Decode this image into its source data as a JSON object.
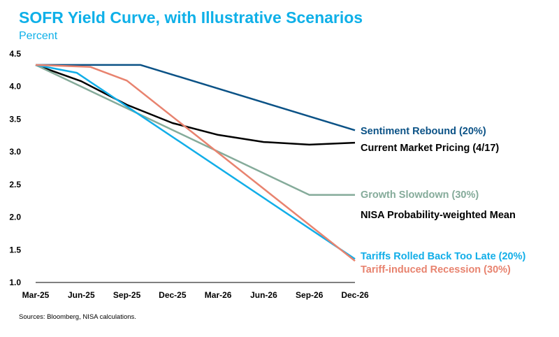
{
  "header": {
    "title": "SOFR Yield Curve, with Illustrative Scenarios",
    "subtitle": "Percent"
  },
  "footer": {
    "source": "Sources: Bloomberg, NISA calculations."
  },
  "chart_data": {
    "type": "line",
    "title": "SOFR Yield Curve, with Illustrative Scenarios",
    "ylabel": "Percent",
    "xlabel": "",
    "categories": [
      "Mar-25",
      "Jun-25",
      "Sep-25",
      "Dec-25",
      "Mar-26",
      "Jun-26",
      "Sep-26",
      "Dec-26"
    ],
    "ylim": [
      1.0,
      4.5
    ],
    "yticks": [
      "1.0",
      "1.5",
      "2.0",
      "2.5",
      "3.0",
      "3.5",
      "4.0",
      "4.5"
    ],
    "grid": false,
    "series": [
      {
        "name": "Sentiment Rebound (20%)",
        "color": "#0b5286",
        "points": [
          [
            0,
            4.33
          ],
          [
            2.3,
            4.33
          ],
          [
            7,
            3.33
          ]
        ]
      },
      {
        "name": "Current Market Pricing (4/17)",
        "color": "#000000",
        "points": [
          [
            0,
            4.33
          ],
          [
            1,
            4.08
          ],
          [
            2,
            3.72
          ],
          [
            3,
            3.44
          ],
          [
            4,
            3.26
          ],
          [
            5,
            3.15
          ],
          [
            6,
            3.11
          ],
          [
            7,
            3.14
          ]
        ]
      },
      {
        "name": "Growth Slowdown (30%)",
        "color": "#85ab9a",
        "points": [
          [
            0,
            4.33
          ],
          [
            6,
            2.34
          ],
          [
            7,
            2.34
          ]
        ]
      },
      {
        "name": "NISA Probability-weighted Mean",
        "color": "#000000",
        "points": []
      },
      {
        "name": "Tariffs Rolled Back Too Late (20%)",
        "color": "#12aee8",
        "points": [
          [
            0,
            4.33
          ],
          [
            0.9,
            4.21
          ],
          [
            7,
            1.36
          ]
        ]
      },
      {
        "name": "Tariff-induced Recession (30%)",
        "color": "#e8836f",
        "points": [
          [
            0,
            4.33
          ],
          [
            1.2,
            4.3
          ],
          [
            2,
            4.09
          ],
          [
            7,
            1.33
          ]
        ]
      }
    ]
  }
}
